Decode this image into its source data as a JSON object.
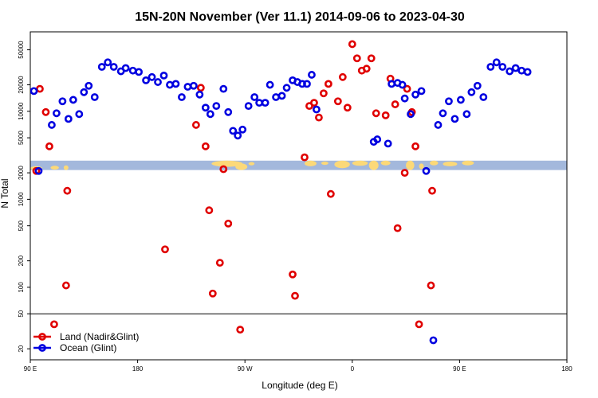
{
  "chart_data": {
    "type": "scatter",
    "title": "15N-20N November (Ver 11.1)   2014-09-06 to 2023-04-30",
    "xlabel": "Longitude (deg E)",
    "ylabel": "N Total",
    "xlim": [
      90,
      540
    ],
    "ylim": [
      15,
      80000
    ],
    "y_scale": "log",
    "x_ticks": [
      {
        "value": 90,
        "label": "90 E"
      },
      {
        "value": 180,
        "label": "180"
      },
      {
        "value": 270,
        "label": "90 W"
      },
      {
        "value": 360,
        "label": "0"
      },
      {
        "value": 450,
        "label": "90 E"
      },
      {
        "value": 540,
        "label": "180"
      }
    ],
    "y_ticks": [
      {
        "value": 20,
        "label": "20"
      },
      {
        "value": 50,
        "label": "50"
      },
      {
        "value": 100,
        "label": "100"
      },
      {
        "value": 200,
        "label": "200"
      },
      {
        "value": 500,
        "label": "500"
      },
      {
        "value": 1000,
        "label": "1000"
      },
      {
        "value": 2000,
        "label": "2000"
      },
      {
        "value": 5000,
        "label": "5000"
      },
      {
        "value": 10000,
        "label": "10000"
      },
      {
        "value": 20000,
        "label": "20000"
      },
      {
        "value": 50000,
        "label": "50000"
      }
    ],
    "separator_y": 50,
    "map_band": {
      "ymin": 2150,
      "ymax": 2750,
      "ocean_color": "#a3b8dc",
      "land_color": "#fcd978"
    },
    "legend_position": "bottom-left",
    "series": [
      {
        "name": "Land (Nadir&Glint)",
        "color": "#e00000",
        "points": [
          [
            95,
            2100
          ],
          [
            98,
            18000
          ],
          [
            103,
            9800
          ],
          [
            106,
            4000
          ],
          [
            110,
            38
          ],
          [
            120,
            105
          ],
          [
            121,
            1250
          ],
          [
            203,
            270
          ],
          [
            229,
            7000
          ],
          [
            233,
            18500
          ],
          [
            237,
            4000
          ],
          [
            240,
            750
          ],
          [
            243,
            85
          ],
          [
            249,
            190
          ],
          [
            252,
            2200
          ],
          [
            256,
            530
          ],
          [
            266,
            33
          ],
          [
            310,
            140
          ],
          [
            312,
            80
          ],
          [
            320,
            3000
          ],
          [
            324,
            11500
          ],
          [
            328,
            12500
          ],
          [
            332,
            8500
          ],
          [
            336,
            16000
          ],
          [
            340,
            20500
          ],
          [
            342,
            1150
          ],
          [
            348,
            13000
          ],
          [
            352,
            24500
          ],
          [
            356,
            11000
          ],
          [
            360,
            58000
          ],
          [
            364,
            40000
          ],
          [
            368,
            29000
          ],
          [
            372,
            30500
          ],
          [
            376,
            40000
          ],
          [
            380,
            9500
          ],
          [
            388,
            9000
          ],
          [
            392,
            23500
          ],
          [
            396,
            12000
          ],
          [
            398,
            470
          ],
          [
            404,
            2000
          ],
          [
            406,
            18000
          ],
          [
            410,
            9800
          ],
          [
            413,
            4000
          ],
          [
            416,
            38
          ],
          [
            426,
            105
          ],
          [
            427,
            1250
          ]
        ]
      },
      {
        "name": "Ocean (Glint)",
        "color": "#0000e0",
        "points": [
          [
            93,
            17000
          ],
          [
            97,
            2100
          ],
          [
            108,
            7000
          ],
          [
            112,
            9500
          ],
          [
            117,
            13000
          ],
          [
            122,
            8200
          ],
          [
            126,
            13500
          ],
          [
            131,
            9300
          ],
          [
            135,
            16500
          ],
          [
            139,
            19500
          ],
          [
            144,
            14500
          ],
          [
            150,
            32000
          ],
          [
            155,
            36000
          ],
          [
            160,
            32000
          ],
          [
            166,
            28500
          ],
          [
            170,
            31000
          ],
          [
            176,
            29000
          ],
          [
            181,
            28000
          ],
          [
            187,
            22500
          ],
          [
            192,
            24500
          ],
          [
            197,
            21500
          ],
          [
            202,
            25500
          ],
          [
            207,
            20000
          ],
          [
            212,
            20500
          ],
          [
            217,
            14500
          ],
          [
            222,
            19000
          ],
          [
            227,
            19500
          ],
          [
            232,
            15500
          ],
          [
            237,
            11000
          ],
          [
            241,
            9300
          ],
          [
            246,
            11500
          ],
          [
            252,
            18000
          ],
          [
            256,
            9800
          ],
          [
            260,
            6000
          ],
          [
            264,
            5300
          ],
          [
            268,
            6200
          ],
          [
            273,
            11500
          ],
          [
            278,
            14500
          ],
          [
            282,
            12500
          ],
          [
            287,
            12500
          ],
          [
            291,
            20000
          ],
          [
            296,
            14500
          ],
          [
            301,
            15000
          ],
          [
            305,
            18500
          ],
          [
            310,
            22500
          ],
          [
            314,
            21500
          ],
          [
            318,
            20500
          ],
          [
            322,
            20500
          ],
          [
            326,
            26000
          ],
          [
            330,
            10500
          ],
          [
            378,
            4500
          ],
          [
            381,
            4800
          ],
          [
            390,
            4300
          ],
          [
            393,
            20500
          ],
          [
            398,
            21000
          ],
          [
            402,
            20000
          ],
          [
            404,
            14000
          ],
          [
            409,
            9300
          ],
          [
            413,
            15500
          ],
          [
            418,
            17000
          ],
          [
            422,
            2100
          ],
          [
            428,
            25
          ],
          [
            432,
            7000
          ],
          [
            436,
            9500
          ],
          [
            441,
            13000
          ],
          [
            446,
            8200
          ],
          [
            451,
            13500
          ],
          [
            456,
            9300
          ],
          [
            460,
            16500
          ],
          [
            465,
            19500
          ],
          [
            470,
            14500
          ],
          [
            476,
            32000
          ],
          [
            481,
            36000
          ],
          [
            486,
            32000
          ],
          [
            492,
            28500
          ],
          [
            497,
            31000
          ],
          [
            502,
            29000
          ],
          [
            507,
            28000
          ]
        ]
      }
    ]
  }
}
